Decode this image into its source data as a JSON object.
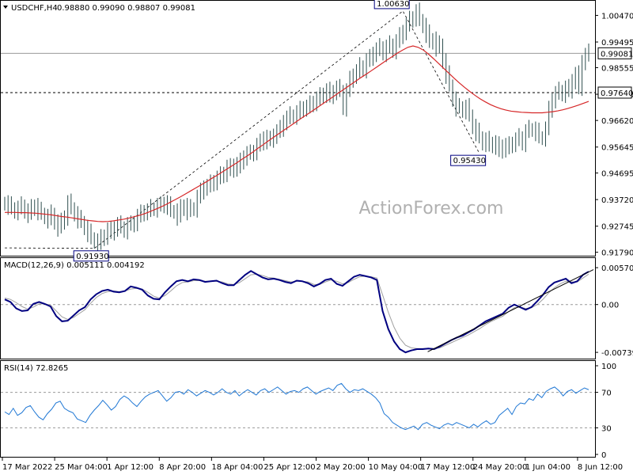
{
  "colors": {
    "candle": "#2f4f4f",
    "ma": "#d62728",
    "macd": "#000080",
    "signal": "#a0a0a0",
    "rsi": "#1f77d4",
    "trend": "#000000"
  },
  "watermark": "ActionForex.com",
  "chart_data": [
    {
      "type": "candlestick",
      "title": "USDCHF,H4",
      "ohlc_text": "0.98880 0.99090 0.98807 0.99081",
      "y_ticks": [
        "1.00470",
        "0.99495",
        "0.98555",
        "0.97580",
        "0.96620",
        "0.95645",
        "0.94695",
        "0.93720",
        "0.92745",
        "0.91790"
      ],
      "ylim": [
        0.9175,
        1.0086
      ],
      "hlines": [
        {
          "value": 0.99081,
          "style": "solid",
          "label": "0.99081"
        },
        {
          "value": 0.9764,
          "style": "dashed",
          "label": "0.97640"
        }
      ],
      "annotations": [
        {
          "text": "1.00630",
          "x_index": 120,
          "value": 1.0063
        },
        {
          "text": "0.91930",
          "x_index": 27,
          "value": 0.9193
        },
        {
          "text": "0.95430",
          "x_index": 143,
          "value": 0.9543
        }
      ],
      "series": [
        {
          "kind": "closes",
          "values": [
            0.936,
            0.935,
            0.934,
            0.933,
            0.934,
            0.935,
            0.933,
            0.932,
            0.934,
            0.935,
            0.933,
            0.932,
            0.931,
            0.93,
            0.932,
            0.929,
            0.927,
            0.929,
            0.931,
            0.936,
            0.934,
            0.932,
            0.93,
            0.929,
            0.927,
            0.925,
            0.923,
            0.922,
            0.921,
            0.923,
            0.924,
            0.926,
            0.925,
            0.927,
            0.928,
            0.927,
            0.926,
            0.928,
            0.928,
            0.929,
            0.931,
            0.932,
            0.933,
            0.933,
            0.934,
            0.934,
            0.935,
            0.935,
            0.936,
            0.935,
            0.933,
            0.933,
            0.931,
            0.934,
            0.935,
            0.933,
            0.934,
            0.934,
            0.938,
            0.94,
            0.942,
            0.942,
            0.943,
            0.944,
            0.945,
            0.946,
            0.947,
            0.949,
            0.948,
            0.95,
            0.949,
            0.951,
            0.953,
            0.954,
            0.954,
            0.955,
            0.957,
            0.958,
            0.96,
            0.959,
            0.959,
            0.961,
            0.962,
            0.963,
            0.966,
            0.967,
            0.968,
            0.968,
            0.969,
            0.97,
            0.971,
            0.971,
            0.972,
            0.973,
            0.974,
            0.975,
            0.976,
            0.977,
            0.975,
            0.977,
            0.978,
            0.977,
            0.971,
            0.977,
            0.981,
            0.983,
            0.984,
            0.986,
            0.985,
            0.988,
            0.989,
            0.991,
            0.992,
            0.993,
            0.991,
            0.993,
            0.994,
            0.992,
            0.995,
            0.997,
            0.999,
            1.001,
            1.003,
            1.004,
            1.006,
            1.003,
            1.001,
            0.998,
            0.995,
            0.996,
            0.993,
            0.994,
            0.988,
            0.983,
            0.979,
            0.974,
            0.971,
            0.971,
            0.97,
            0.971,
            0.968,
            0.964,
            0.962,
            0.96,
            0.958,
            0.959,
            0.957,
            0.958,
            0.957,
            0.955,
            0.957,
            0.956,
            0.957,
            0.958,
            0.959,
            0.96,
            0.958,
            0.962,
            0.963,
            0.963,
            0.962,
            0.96,
            0.96,
            0.963,
            0.97,
            0.974,
            0.976,
            0.977,
            0.976,
            0.978,
            0.977,
            0.981,
            0.983,
            0.978,
            0.988,
            0.99,
            0.991
          ]
        },
        {
          "kind": "ma",
          "name": "",
          "values": [
            0.9325,
            0.9325,
            0.9325,
            0.9324,
            0.9324,
            0.9323,
            0.9322,
            0.932,
            0.9318,
            0.9316,
            0.9313,
            0.931,
            0.9308,
            0.9305,
            0.9302,
            0.9299,
            0.9296,
            0.9294,
            0.9292,
            0.9291,
            0.9292,
            0.9294,
            0.9297,
            0.93,
            0.9304,
            0.9309,
            0.9314,
            0.932,
            0.9327,
            0.9335,
            0.9343,
            0.9352,
            0.9362,
            0.9372,
            0.9382,
            0.9393,
            0.9404,
            0.9415,
            0.9426,
            0.9437,
            0.9449,
            0.946,
            0.9472,
            0.9484,
            0.9496,
            0.9508,
            0.9521,
            0.9533,
            0.9546,
            0.956,
            0.9573,
            0.9587,
            0.96,
            0.9613,
            0.9626,
            0.9639,
            0.9652,
            0.9665,
            0.9678,
            0.969,
            0.9703,
            0.9716,
            0.9729,
            0.9742,
            0.9755,
            0.9768,
            0.9781,
            0.9794,
            0.9807,
            0.982,
            0.9832,
            0.9845,
            0.9858,
            0.9871,
            0.9884,
            0.9896,
            0.9909,
            0.992,
            0.993,
            0.9935,
            0.993,
            0.992,
            0.9905,
            0.9888,
            0.987,
            0.9852,
            0.9834,
            0.9816,
            0.9799,
            0.9783,
            0.9768,
            0.9754,
            0.9741,
            0.973,
            0.972,
            0.9712,
            0.9705,
            0.97,
            0.9696,
            0.9694,
            0.9692,
            0.9691,
            0.969,
            0.969,
            0.969,
            0.9692,
            0.9694,
            0.9697,
            0.9701,
            0.9706,
            0.9712,
            0.9718,
            0.9725,
            0.9732
          ]
        }
      ]
    },
    {
      "type": "line",
      "title": "MACD(12,26,9) 0.005111 0.004192",
      "y_ticks": [
        "0.005707",
        "0.00",
        "-0.007399"
      ],
      "ylim": [
        -0.008,
        0.0067
      ],
      "zero_label": "0.00",
      "series": [
        {
          "kind": "macd",
          "values": [
            0.0008,
            0.0004,
            -0.0006,
            -0.001,
            -0.0009,
            0.0001,
            0.0004,
            0.0001,
            -0.0003,
            -0.0018,
            -0.0026,
            -0.0025,
            -0.0017,
            -0.0009,
            -0.0004,
            0.0008,
            0.0016,
            0.0021,
            0.0023,
            0.002,
            0.0019,
            0.0021,
            0.0028,
            0.0026,
            0.0023,
            0.0014,
            0.0009,
            0.0008,
            0.0019,
            0.0028,
            0.0036,
            0.0038,
            0.0036,
            0.0039,
            0.0038,
            0.0035,
            0.0036,
            0.0037,
            0.0033,
            0.003,
            0.003,
            0.0038,
            0.0046,
            0.0052,
            0.0047,
            0.0042,
            0.0039,
            0.004,
            0.0038,
            0.0035,
            0.0033,
            0.0037,
            0.0036,
            0.0033,
            0.0028,
            0.0032,
            0.0038,
            0.004,
            0.0032,
            0.0029,
            0.0036,
            0.0043,
            0.0046,
            0.0044,
            0.0042,
            0.0038,
            -0.001,
            -0.0038,
            -0.0057,
            -0.0069,
            -0.0074,
            -0.0071,
            -0.0069,
            -0.0069,
            -0.0068,
            -0.0069,
            -0.0065,
            -0.006,
            -0.0055,
            -0.0051,
            -0.0048,
            -0.0043,
            -0.0038,
            -0.0032,
            -0.0026,
            -0.0022,
            -0.0018,
            -0.0014,
            -0.0005,
            0.0,
            -0.0004,
            -0.0008,
            -0.0004,
            0.0005,
            0.0015,
            0.0027,
            0.0034,
            0.0037,
            0.004,
            0.0033,
            0.0036,
            0.0046,
            0.0051
          ]
        },
        {
          "kind": "signal",
          "values": [
            0.001,
            0.0008,
            0.0003,
            -0.0003,
            -0.0007,
            -0.0004,
            0.0001,
            0.0001,
            -0.0001,
            -0.001,
            -0.0019,
            -0.0023,
            -0.002,
            -0.0014,
            -0.0008,
            0.0002,
            0.0011,
            0.0017,
            0.002,
            0.0021,
            0.002,
            0.0021,
            0.0024,
            0.0025,
            0.0024,
            0.0019,
            0.0013,
            0.001,
            0.0014,
            0.0021,
            0.0029,
            0.0034,
            0.0035,
            0.0037,
            0.0037,
            0.0036,
            0.0036,
            0.0036,
            0.0035,
            0.0032,
            0.0031,
            0.0034,
            0.004,
            0.0046,
            0.0047,
            0.0045,
            0.0042,
            0.0041,
            0.0039,
            0.0037,
            0.0035,
            0.0036,
            0.0036,
            0.0035,
            0.0031,
            0.0031,
            0.0035,
            0.0038,
            0.0036,
            0.0032,
            0.0034,
            0.0039,
            0.0043,
            0.0044,
            0.0043,
            0.0041,
            0.0015,
            -0.0012,
            -0.0035,
            -0.0052,
            -0.0063,
            -0.0067,
            -0.0068,
            -0.0068,
            -0.0068,
            -0.0068,
            -0.0067,
            -0.0063,
            -0.0059,
            -0.0055,
            -0.0051,
            -0.0047,
            -0.0042,
            -0.0037,
            -0.0031,
            -0.0026,
            -0.0022,
            -0.0018,
            -0.0011,
            -0.0005,
            -0.0004,
            -0.0006,
            -0.0005,
            0.0,
            0.0008,
            0.0018,
            0.0026,
            0.0032,
            0.0036,
            0.0035,
            0.0035,
            0.0041,
            0.0047
          ]
        },
        {
          "kind": "trendline",
          "points": [
            [
              0.72,
              -0.0073
            ],
            [
              1.0,
              0.0054
            ]
          ]
        }
      ]
    },
    {
      "type": "line",
      "title": "RSI(14) 72.8265",
      "y_ticks": [
        "100",
        "70",
        "30",
        "0"
      ],
      "ylim": [
        0,
        100
      ],
      "levels": [
        70,
        30
      ],
      "series": [
        {
          "kind": "rsi",
          "values": [
            48,
            45,
            52,
            44,
            47,
            53,
            55,
            48,
            42,
            39,
            46,
            51,
            58,
            60,
            52,
            49,
            47,
            40,
            38,
            36,
            44,
            50,
            55,
            61,
            56,
            50,
            54,
            62,
            66,
            63,
            58,
            54,
            60,
            65,
            68,
            70,
            72,
            66,
            60,
            64,
            70,
            71,
            68,
            73,
            70,
            66,
            69,
            72,
            70,
            67,
            70,
            74,
            70,
            68,
            72,
            66,
            70,
            73,
            70,
            67,
            72,
            74,
            70,
            73,
            76,
            72,
            68,
            71,
            72,
            70,
            74,
            76,
            72,
            68,
            71,
            73,
            75,
            72,
            78,
            80,
            74,
            70,
            73,
            72,
            74,
            71,
            68,
            64,
            58,
            46,
            42,
            36,
            33,
            30,
            28,
            30,
            32,
            28,
            34,
            36,
            33,
            31,
            29,
            33,
            35,
            33,
            36,
            34,
            32,
            30,
            34,
            31,
            35,
            38,
            34,
            36,
            44,
            48,
            52,
            45,
            54,
            58,
            57,
            63,
            61,
            68,
            64,
            71,
            74,
            76,
            72,
            66,
            71,
            73,
            69,
            72,
            75,
            73
          ]
        }
      ]
    }
  ],
  "x_labels": [
    "17 Mar 2022",
    "25 Mar 04:00",
    "1 Apr 12:00",
    "8 Apr 20:00",
    "18 Apr 04:00",
    "25 Apr 12:00",
    "2 May 20:00",
    "10 May 04:00",
    "17 May 12:00",
    "24 May 20:00",
    "1 Jun 04:00",
    "8 Jun 12:00"
  ]
}
